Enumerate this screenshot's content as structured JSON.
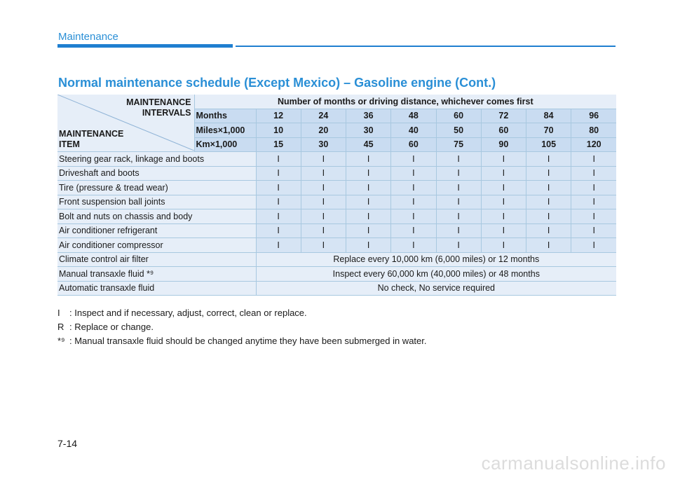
{
  "header": {
    "section": "Maintenance"
  },
  "heading": "Normal maintenance schedule (Except Mexico) – Gasoline engine  (Cont.)",
  "table": {
    "corner_top_line1": "MAINTENANCE",
    "corner_top_line2": "INTERVALS",
    "corner_bottom_line1": "MAINTENANCE",
    "corner_bottom_line2": "ITEM",
    "title": "Number of months or driving distance, whichever comes first",
    "interval_rows": [
      {
        "label": "Months",
        "values": [
          "12",
          "24",
          "36",
          "48",
          "60",
          "72",
          "84",
          "96"
        ]
      },
      {
        "label": "Miles×1,000",
        "values": [
          "10",
          "20",
          "30",
          "40",
          "50",
          "60",
          "70",
          "80"
        ]
      },
      {
        "label": "Km×1,000",
        "values": [
          "15",
          "30",
          "45",
          "60",
          "75",
          "90",
          "105",
          "120"
        ]
      }
    ],
    "items": [
      {
        "name": "Steering gear rack, linkage and boots",
        "marks": [
          "I",
          "I",
          "I",
          "I",
          "I",
          "I",
          "I",
          "I"
        ]
      },
      {
        "name": "Driveshaft and boots",
        "marks": [
          "I",
          "I",
          "I",
          "I",
          "I",
          "I",
          "I",
          "I"
        ]
      },
      {
        "name": "Tire (pressure & tread wear)",
        "marks": [
          "I",
          "I",
          "I",
          "I",
          "I",
          "I",
          "I",
          "I"
        ]
      },
      {
        "name": "Front suspension ball joints",
        "marks": [
          "I",
          "I",
          "I",
          "I",
          "I",
          "I",
          "I",
          "I"
        ]
      },
      {
        "name": "Bolt and nuts on chassis and body",
        "marks": [
          "I",
          "I",
          "I",
          "I",
          "I",
          "I",
          "I",
          "I"
        ]
      },
      {
        "name": "Air conditioner refrigerant",
        "marks": [
          "I",
          "I",
          "I",
          "I",
          "I",
          "I",
          "I",
          "I"
        ]
      },
      {
        "name": "Air conditioner compressor",
        "marks": [
          "I",
          "I",
          "I",
          "I",
          "I",
          "I",
          "I",
          "I"
        ]
      },
      {
        "name": "Climate control air filter",
        "span": "Replace every 10,000 km (6,000 miles) or 12 months"
      },
      {
        "name": "Manual transaxle fluid *⁹",
        "span": "Inspect every 60,000 km (40,000 miles) or 48 months"
      },
      {
        "name": "Automatic transaxle fluid",
        "span": "No check, No service required"
      }
    ]
  },
  "legend": [
    {
      "key": "I",
      "text": ": Inspect and if necessary, adjust, correct, clean or replace."
    },
    {
      "key": "R",
      "text": ": Replace or change."
    },
    {
      "key": "*⁹",
      "text": ": Manual transaxle fluid should be changed anytime they have been submerged in water."
    }
  ],
  "footer": {
    "page_number": "7-14",
    "watermark": "carmanualsonline.info"
  }
}
